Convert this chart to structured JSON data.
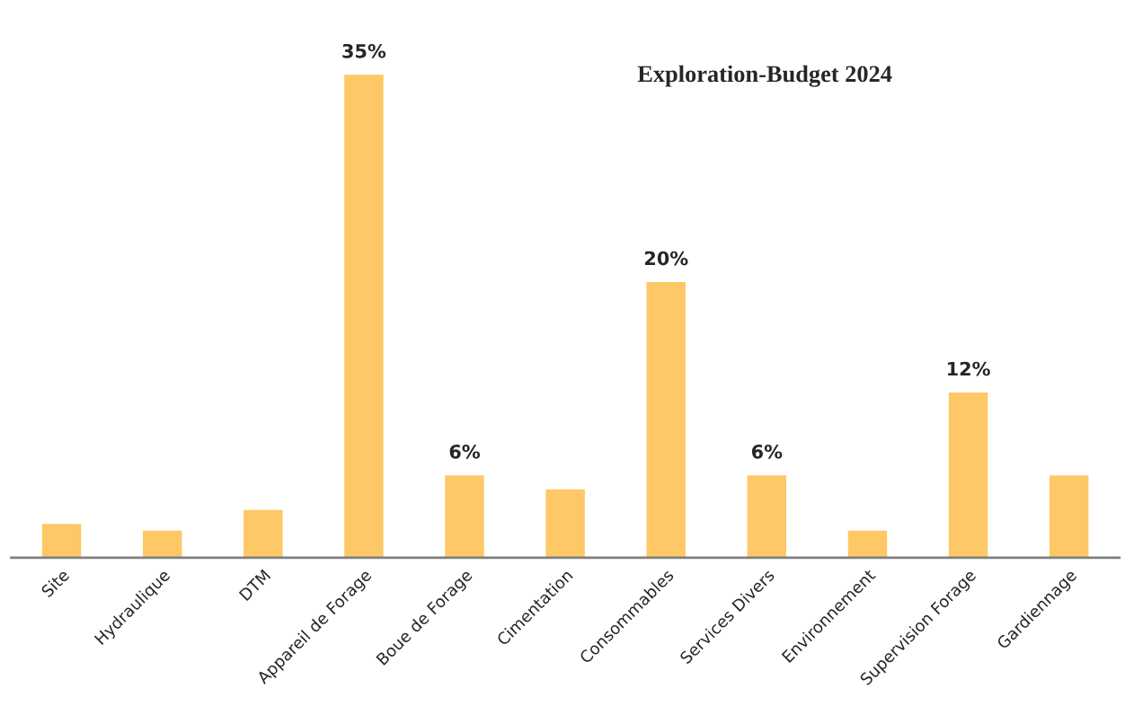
{
  "chart_data": {
    "type": "bar",
    "title": "Exploration-Budget 2024",
    "categories": [
      "Site",
      "Hydraulique",
      "DTM",
      "Appareil de Forage",
      "Boue de Forage",
      "Cimentation",
      "Consommables",
      "Services Divers",
      "Environnement",
      "Supervision Forage",
      "Gardiennage"
    ],
    "values": [
      2.5,
      2,
      3.5,
      35,
      6,
      5,
      20,
      6,
      2,
      12,
      6
    ],
    "value_labels": [
      null,
      null,
      null,
      "35%",
      "6%",
      null,
      "20%",
      "6%",
      null,
      "12%",
      null
    ],
    "color": "#fdc865",
    "grid": false
  }
}
